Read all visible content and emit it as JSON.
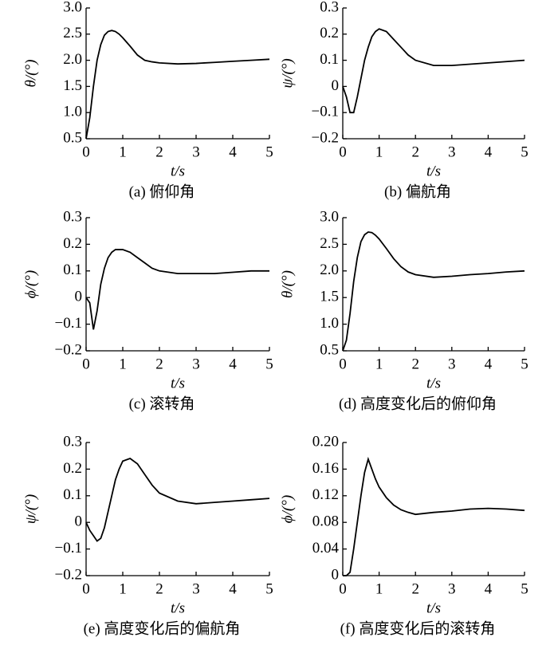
{
  "chart_data": [
    {
      "type": "line",
      "title": "(a) 俯仰角",
      "xlabel": "t/s",
      "ylabel": "θ/(°)",
      "color": "#000000",
      "x": [
        0,
        0.1,
        0.2,
        0.3,
        0.4,
        0.5,
        0.6,
        0.7,
        0.8,
        0.9,
        1.0,
        1.2,
        1.4,
        1.6,
        1.8,
        2.0,
        2.5,
        3.0,
        3.5,
        4.0,
        4.5,
        5.0
      ],
      "values": [
        0.5,
        0.9,
        1.5,
        2.0,
        2.3,
        2.48,
        2.55,
        2.57,
        2.55,
        2.5,
        2.43,
        2.27,
        2.1,
        2.0,
        1.97,
        1.95,
        1.93,
        1.94,
        1.96,
        1.98,
        2.0,
        2.02
      ],
      "xlim": [
        0,
        5
      ],
      "xticks": [
        0,
        1,
        2,
        3,
        4,
        5
      ],
      "ylim": [
        0.5,
        3
      ],
      "yticks": [
        0.5,
        {
          "value": 1,
          "label": "1.0"
        },
        1.5,
        {
          "value": 2,
          "label": "2.0"
        },
        2.5,
        {
          "value": 3,
          "label": "3.0"
        }
      ]
    },
    {
      "type": "line",
      "title": "(b) 偏航角",
      "xlabel": "t/s",
      "ylabel": "ψ/(°)",
      "color": "#000000",
      "x": [
        0,
        0.1,
        0.2,
        0.3,
        0.4,
        0.5,
        0.6,
        0.7,
        0.8,
        0.9,
        1.0,
        1.2,
        1.4,
        1.6,
        1.8,
        2.0,
        2.5,
        3.0,
        3.5,
        4.0,
        4.5,
        5.0
      ],
      "values": [
        0,
        -0.04,
        -0.1,
        -0.1,
        -0.04,
        0.03,
        0.1,
        0.15,
        0.19,
        0.21,
        0.22,
        0.21,
        0.18,
        0.15,
        0.12,
        0.1,
        0.08,
        0.08,
        0.085,
        0.09,
        0.095,
        0.1
      ],
      "xlim": [
        0,
        5
      ],
      "xticks": [
        0,
        1,
        2,
        3,
        4,
        5
      ],
      "ylim": [
        -0.2,
        0.3
      ],
      "yticks": [
        {
          "value": -0.2,
          "label": "−0.2"
        },
        {
          "value": -0.1,
          "label": "−0.1"
        },
        0,
        0.1,
        0.2,
        0.3
      ]
    },
    {
      "type": "line",
      "title": "(c) 滚转角",
      "xlabel": "t/s",
      "ylabel": "ϕ/(°)",
      "color": "#000000",
      "x": [
        0,
        0.1,
        0.2,
        0.3,
        0.4,
        0.5,
        0.6,
        0.7,
        0.8,
        0.9,
        1.0,
        1.2,
        1.4,
        1.6,
        1.8,
        2.0,
        2.5,
        3.0,
        3.5,
        4.0,
        4.5,
        5.0
      ],
      "values": [
        0,
        -0.02,
        -0.12,
        -0.05,
        0.05,
        0.11,
        0.15,
        0.17,
        0.18,
        0.18,
        0.18,
        0.17,
        0.15,
        0.13,
        0.11,
        0.1,
        0.09,
        0.09,
        0.09,
        0.095,
        0.1,
        0.1
      ],
      "xlim": [
        0,
        5
      ],
      "xticks": [
        0,
        1,
        2,
        3,
        4,
        5
      ],
      "ylim": [
        -0.2,
        0.3
      ],
      "yticks": [
        {
          "value": -0.2,
          "label": "−0.2"
        },
        {
          "value": -0.1,
          "label": "−0.1"
        },
        0,
        0.1,
        0.2,
        0.3
      ]
    },
    {
      "type": "line",
      "title": "(d) 高度变化后的俯仰角",
      "xlabel": "t/s",
      "ylabel": "θ/(°)",
      "color": "#000000",
      "x": [
        0,
        0.1,
        0.2,
        0.3,
        0.4,
        0.5,
        0.6,
        0.7,
        0.8,
        0.9,
        1.0,
        1.2,
        1.4,
        1.6,
        1.8,
        2.0,
        2.5,
        3.0,
        3.5,
        4.0,
        4.5,
        5.0
      ],
      "values": [
        0.5,
        0.7,
        1.2,
        1.8,
        2.25,
        2.55,
        2.68,
        2.73,
        2.72,
        2.67,
        2.6,
        2.42,
        2.23,
        2.08,
        1.98,
        1.93,
        1.88,
        1.9,
        1.93,
        1.95,
        1.98,
        2.0
      ],
      "xlim": [
        0,
        5
      ],
      "xticks": [
        0,
        1,
        2,
        3,
        4,
        5
      ],
      "ylim": [
        0.5,
        3
      ],
      "yticks": [
        0.5,
        {
          "value": 1,
          "label": "1.0"
        },
        1.5,
        {
          "value": 2,
          "label": "2.0"
        },
        2.5,
        {
          "value": 3,
          "label": "3.0"
        }
      ]
    },
    {
      "type": "line",
      "title": "(e) 高度变化后的偏航角",
      "xlabel": "t/s",
      "ylabel": "ψ/(°)",
      "color": "#000000",
      "x": [
        0,
        0.1,
        0.2,
        0.3,
        0.4,
        0.5,
        0.6,
        0.7,
        0.8,
        0.9,
        1.0,
        1.2,
        1.4,
        1.6,
        1.8,
        2.0,
        2.5,
        3.0,
        3.5,
        4.0,
        4.5,
        5.0
      ],
      "values": [
        0,
        -0.03,
        -0.05,
        -0.07,
        -0.06,
        -0.02,
        0.04,
        0.1,
        0.16,
        0.2,
        0.23,
        0.24,
        0.22,
        0.18,
        0.14,
        0.11,
        0.08,
        0.07,
        0.075,
        0.08,
        0.085,
        0.09
      ],
      "xlim": [
        0,
        5
      ],
      "xticks": [
        0,
        1,
        2,
        3,
        4,
        5
      ],
      "ylim": [
        -0.2,
        0.3
      ],
      "yticks": [
        {
          "value": -0.2,
          "label": "−0.2"
        },
        {
          "value": -0.1,
          "label": "−0.1"
        },
        0,
        0.1,
        0.2,
        0.3
      ]
    },
    {
      "type": "line",
      "title": "(f) 高度变化后的滚转角",
      "xlabel": "t/s",
      "ylabel": "ϕ/(°)",
      "color": "#000000",
      "x": [
        0,
        0.1,
        0.2,
        0.3,
        0.4,
        0.5,
        0.6,
        0.7,
        0.8,
        0.9,
        1.0,
        1.2,
        1.4,
        1.6,
        1.8,
        2.0,
        2.5,
        3.0,
        3.5,
        4.0,
        4.5,
        5.0
      ],
      "values": [
        0,
        0,
        0.005,
        0.04,
        0.08,
        0.12,
        0.155,
        0.175,
        0.16,
        0.145,
        0.133,
        0.117,
        0.106,
        0.099,
        0.095,
        0.092,
        0.095,
        0.097,
        0.1,
        0.101,
        0.1,
        0.098
      ],
      "xlim": [
        0,
        5
      ],
      "xticks": [
        0,
        1,
        2,
        3,
        4,
        5
      ],
      "ylim": [
        0,
        0.2
      ],
      "yticks": [
        0,
        0.04,
        0.08,
        0.12,
        0.16,
        {
          "value": 0.2,
          "label": "0.20"
        }
      ]
    }
  ]
}
